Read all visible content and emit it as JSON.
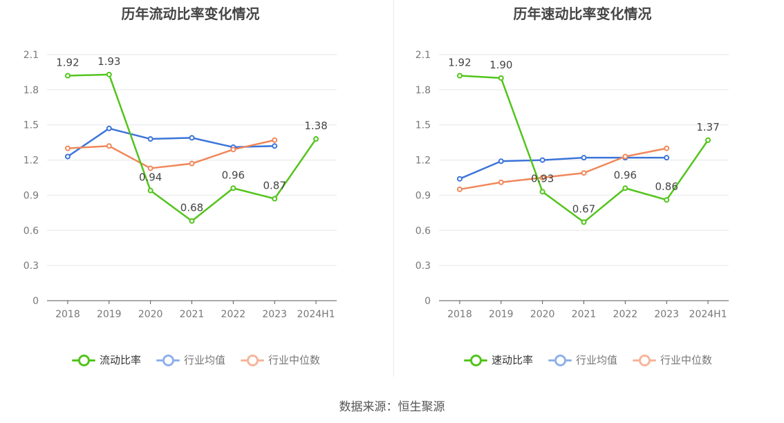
{
  "source": "数据来源：恒生聚源",
  "chart_data": [
    {
      "type": "line",
      "title": "历年流动比率变化情况",
      "categories": [
        "2018",
        "2019",
        "2020",
        "2021",
        "2022",
        "2023",
        "2024H1"
      ],
      "ylim": [
        0,
        2.1
      ],
      "yticks": [
        "0",
        "0.3",
        "0.6",
        "0.9",
        "1.2",
        "1.5",
        "1.8",
        "2.1"
      ],
      "grid": true,
      "legend_position": "bottom",
      "series": [
        {
          "name": "流动比率",
          "color": "#52c41a",
          "values": [
            1.92,
            1.93,
            0.94,
            0.68,
            0.96,
            0.87,
            1.38
          ],
          "labels": [
            "1.92",
            "1.93",
            "0.94",
            "0.68",
            "0.96",
            "0.87",
            "1.38"
          ]
        },
        {
          "name": "行业均值",
          "color": "#3b74d9",
          "values": [
            1.23,
            1.47,
            1.38,
            1.39,
            1.31,
            1.32,
            null
          ]
        },
        {
          "name": "行业中位数",
          "color": "#f0875a",
          "values": [
            1.3,
            1.32,
            1.13,
            1.17,
            1.29,
            1.37,
            null
          ]
        }
      ]
    },
    {
      "type": "line",
      "title": "历年速动比率变化情况",
      "categories": [
        "2018",
        "2019",
        "2020",
        "2021",
        "2022",
        "2023",
        "2024H1"
      ],
      "ylim": [
        0,
        2.1
      ],
      "yticks": [
        "0",
        "0.3",
        "0.6",
        "0.9",
        "1.2",
        "1.5",
        "1.8",
        "2.1"
      ],
      "grid": true,
      "legend_position": "bottom",
      "series": [
        {
          "name": "速动比率",
          "color": "#52c41a",
          "values": [
            1.92,
            1.9,
            0.93,
            0.67,
            0.96,
            0.86,
            1.37
          ],
          "labels": [
            "1.92",
            "1.90",
            "0.93",
            "0.67",
            "0.96",
            "0.86",
            "1.37"
          ]
        },
        {
          "name": "行业均值",
          "color": "#3b74d9",
          "values": [
            1.04,
            1.19,
            1.2,
            1.22,
            1.22,
            1.22,
            null
          ]
        },
        {
          "name": "行业中位数",
          "color": "#f0875a",
          "values": [
            0.95,
            1.01,
            1.05,
            1.09,
            1.23,
            1.3,
            null
          ]
        }
      ]
    }
  ]
}
